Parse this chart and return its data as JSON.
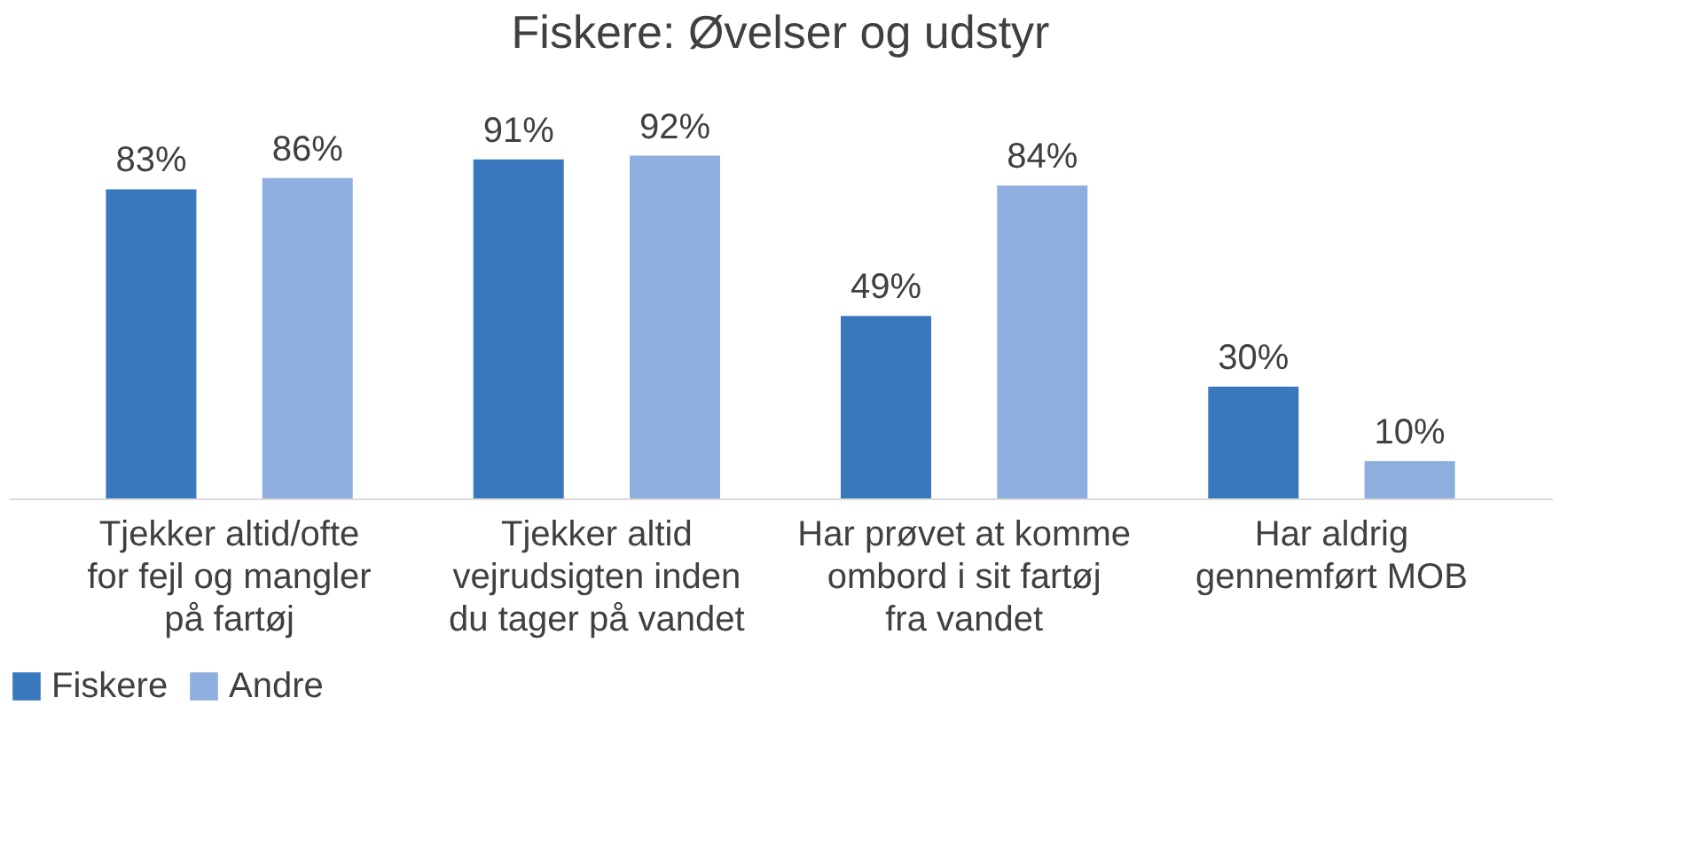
{
  "chart_data": {
    "type": "bar",
    "title": "Fiskere: Øvelser og udstyr",
    "categories": [
      "Tjekker altid/ofte for fejl og mangler på fartøj",
      "Tjekker altid vejrudsigten inden du tager på vandet",
      "Har prøvet at komme ombord i sit fartøj fra vandet",
      "Har aldrig gennemført MOB"
    ],
    "series": [
      {
        "name": "Fiskere",
        "color": "#3a78be",
        "values": [
          83,
          91,
          49,
          30
        ],
        "value_labels": [
          "83%",
          "91%",
          "49%",
          "30%"
        ]
      },
      {
        "name": "Andre",
        "color": "#8faee0",
        "values": [
          86,
          92,
          84,
          10
        ],
        "value_labels": [
          "86%",
          "92%",
          "84%",
          "10%"
        ]
      }
    ],
    "legend": "bottom",
    "grid": false
  }
}
